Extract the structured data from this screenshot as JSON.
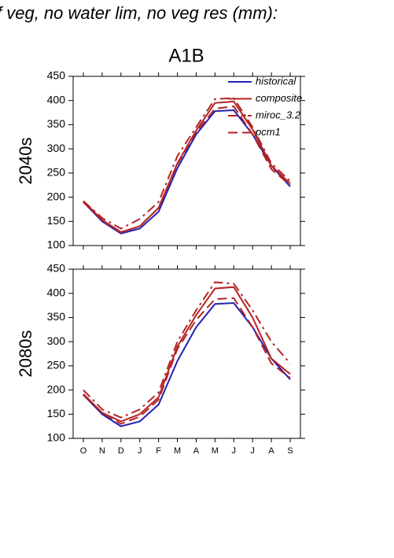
{
  "header": {
    "title": "f veg, no water lim, no veg res (mm):",
    "subtitle": "A1B"
  },
  "chart_data": [
    {
      "type": "line",
      "ylabel": "2040s",
      "legend": "upper right",
      "categories": [
        "O",
        "N",
        "D",
        "J",
        "F",
        "M",
        "A",
        "M",
        "J",
        "J",
        "A",
        "S"
      ],
      "ylim": [
        100,
        450
      ],
      "yticks": [
        100,
        150,
        200,
        250,
        300,
        350,
        400,
        450
      ],
      "series": [
        {
          "name": "historical",
          "color": "#2323b4",
          "dash": "solid",
          "values": [
            190,
            150,
            125,
            135,
            170,
            260,
            330,
            378,
            380,
            330,
            265,
            222
          ]
        },
        {
          "name": "composite",
          "color": "#b42323",
          "dash": "solid",
          "values": [
            192,
            153,
            128,
            140,
            178,
            270,
            338,
            395,
            398,
            340,
            265,
            228
          ]
        },
        {
          "name": "miroc_3.2",
          "color": "#b42323",
          "dash": "dashdot",
          "values": [
            192,
            157,
            135,
            155,
            190,
            285,
            345,
            403,
            405,
            345,
            270,
            233
          ]
        },
        {
          "name": "pcm1",
          "color": "#b42323",
          "dash": "dash",
          "values": [
            190,
            152,
            127,
            140,
            178,
            268,
            335,
            383,
            388,
            330,
            258,
            225
          ]
        }
      ]
    },
    {
      "type": "line",
      "ylabel": "2080s",
      "categories": [
        "O",
        "N",
        "D",
        "J",
        "F",
        "M",
        "A",
        "M",
        "J",
        "J",
        "A",
        "S"
      ],
      "ylim": [
        100,
        450
      ],
      "yticks": [
        100,
        150,
        200,
        250,
        300,
        350,
        400,
        450
      ],
      "series": [
        {
          "name": "historical",
          "color": "#2323b4",
          "dash": "solid",
          "values": [
            190,
            150,
            125,
            135,
            170,
            260,
            330,
            378,
            380,
            330,
            265,
            222
          ]
        },
        {
          "name": "composite",
          "color": "#b42323",
          "dash": "solid",
          "values": [
            192,
            153,
            135,
            150,
            185,
            290,
            355,
            410,
            413,
            350,
            265,
            233
          ]
        },
        {
          "name": "miroc_3.2",
          "color": "#b42323",
          "dash": "dashdot",
          "values": [
            200,
            160,
            143,
            160,
            195,
            300,
            365,
            423,
            420,
            365,
            300,
            255
          ]
        },
        {
          "name": "pcm1",
          "color": "#b42323",
          "dash": "dash",
          "values": [
            190,
            153,
            130,
            145,
            180,
            285,
            345,
            388,
            390,
            330,
            255,
            225
          ]
        }
      ]
    }
  ]
}
